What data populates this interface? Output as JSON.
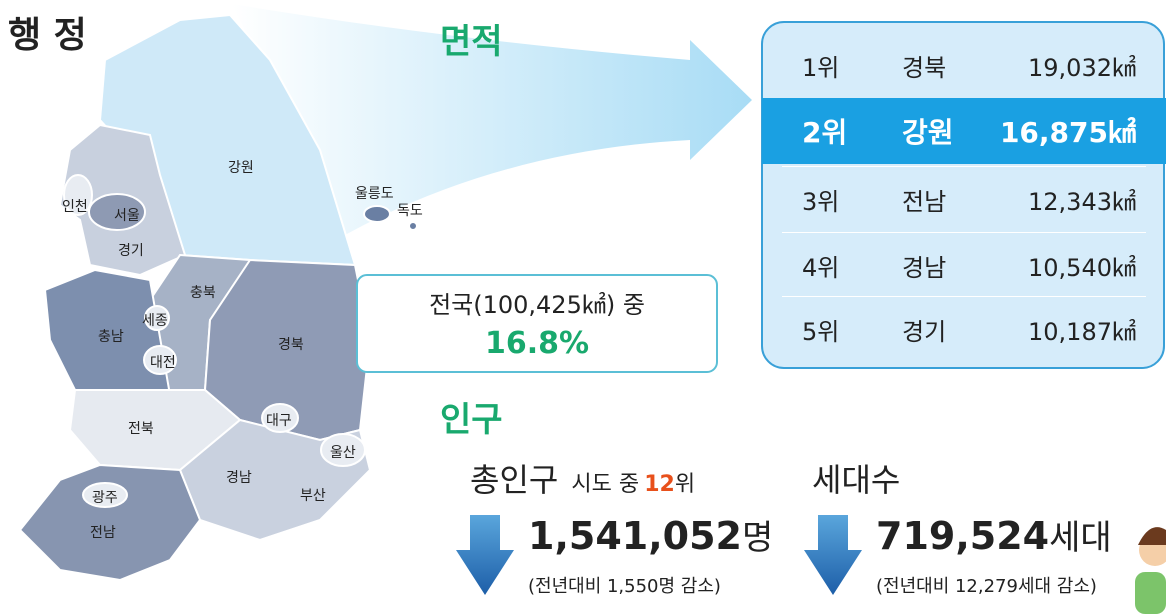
{
  "header": {
    "title": "행 정"
  },
  "area": {
    "heading": "면적",
    "ranking": [
      {
        "rank": "1위",
        "region": "경북",
        "value": "19,032㎢"
      },
      {
        "rank": "2위",
        "region": "강원",
        "value": "16,875㎢"
      },
      {
        "rank": "3위",
        "region": "전남",
        "value": "12,343㎢"
      },
      {
        "rank": "4위",
        "region": "경남",
        "value": "10,540㎢"
      },
      {
        "rank": "5위",
        "region": "경기",
        "value": "10,187㎢"
      }
    ],
    "national": "전국(100,425㎢) 중",
    "share": "16.8%"
  },
  "map": {
    "labels": [
      "강원",
      "울릉도",
      "독도",
      "인천",
      "서울",
      "경기",
      "충북",
      "세종",
      "충남",
      "대전",
      "경북",
      "전북",
      "대구",
      "울산",
      "경남",
      "부산",
      "광주",
      "전남"
    ]
  },
  "population": {
    "heading": "인구",
    "total_label": "총인구",
    "rank_prefix": "시도 중",
    "rank_value": "12",
    "rank_suffix": "위",
    "total_value": "1,541,052",
    "total_unit": "명",
    "total_change": "(전년대비 1,550명 감소)",
    "household_label": "세대수",
    "household_value": "719,524",
    "household_unit": "세대",
    "household_change": "(전년대비 12,279세대 감소)"
  }
}
